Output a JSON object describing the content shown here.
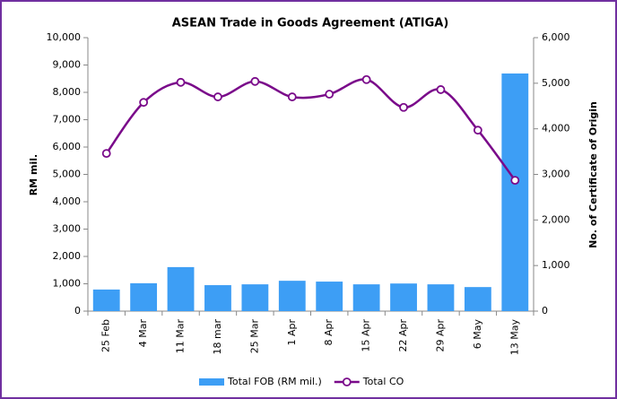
{
  "chart_data": {
    "type": "combo",
    "title": "ASEAN Trade in Goods Agreement (ATIGA)",
    "y_label": "RM mil.",
    "y2_label": "No. of Certificate of Origin",
    "categories": [
      "25 Feb",
      "4 Mar",
      "11 Mar",
      "18 mar",
      "25 Mar",
      "1 Apr",
      "8 Apr",
      "15 Apr",
      "22 Apr",
      "29 Apr",
      "6 May",
      "13 May"
    ],
    "series": [
      {
        "name": "Total FOB (RM mil.)",
        "type": "bar",
        "color": "#3d9ef5",
        "axis": "y",
        "values": [
          790,
          1020,
          1610,
          950,
          980,
          1110,
          1080,
          980,
          1010,
          980,
          880,
          8690
        ]
      },
      {
        "name": "Total CO",
        "type": "line",
        "color": "#7a0a8a",
        "axis": "y2",
        "values": [
          3460,
          4580,
          5020,
          4700,
          5040,
          4700,
          4760,
          5080,
          4470,
          4860,
          3970,
          2870
        ]
      }
    ],
    "ylim": [
      0,
      10000
    ],
    "yticks": [
      0,
      {
        "value": 1000,
        "label": "1,000"
      },
      {
        "value": 2000,
        "label": "2,000"
      },
      {
        "value": 3000,
        "label": "3,000"
      },
      {
        "value": 4000,
        "label": "4,000"
      },
      {
        "value": 5000,
        "label": "5,000"
      },
      {
        "value": 6000,
        "label": "6,000"
      },
      {
        "value": 7000,
        "label": "7,000"
      },
      {
        "value": 8000,
        "label": "8,000"
      },
      {
        "value": 9000,
        "label": "9,000"
      },
      {
        "value": 10000,
        "label": "10,000"
      }
    ],
    "y2lim": [
      0,
      6000
    ],
    "y2ticks": [
      0,
      {
        "value": 1000,
        "label": "1,000"
      },
      {
        "value": 2000,
        "label": "2,000"
      },
      {
        "value": 3000,
        "label": "3,000"
      },
      {
        "value": 4000,
        "label": "4,000"
      },
      {
        "value": 5000,
        "label": "5,000"
      },
      {
        "value": 6000,
        "label": "6,000"
      }
    ],
    "grid": false,
    "legend": "bottom"
  }
}
